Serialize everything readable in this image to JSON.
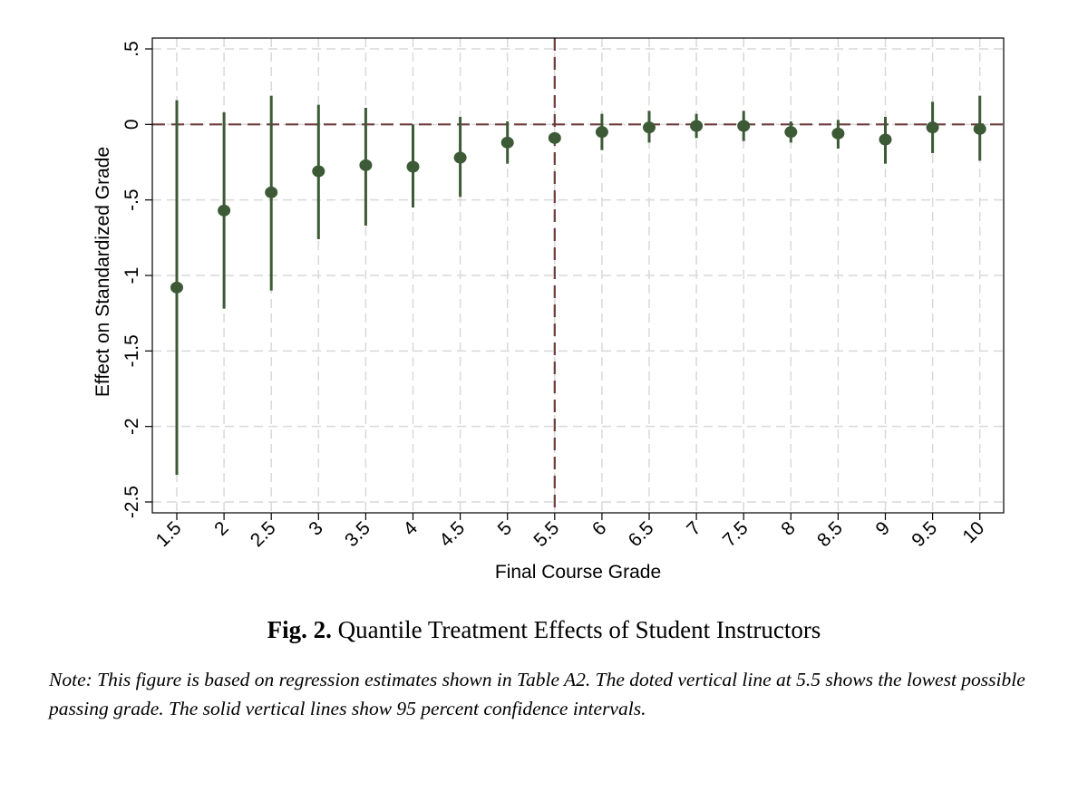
{
  "chart_data": {
    "type": "scatter",
    "subtype": "point-estimate-with-confidence-intervals",
    "xlabel": "Final Course Grade",
    "ylabel": "Effect on Standardized Grade",
    "ylim": [
      -2.5,
      0.5
    ],
    "y_ticks": [
      ".5",
      "0",
      "-.5",
      "-1",
      "-1.5",
      "-2",
      "-2.5"
    ],
    "y_tick_values": [
      0.5,
      0,
      -0.5,
      -1,
      -1.5,
      -2,
      -2.5
    ],
    "x_ticks": [
      "1.5",
      "2",
      "2.5",
      "3",
      "3.5",
      "4",
      "4.5",
      "5",
      "5.5",
      "6",
      "6.5",
      "7",
      "7.5",
      "8",
      "8.5",
      "9",
      "9.5",
      "10"
    ],
    "x": [
      1.5,
      2,
      2.5,
      3,
      3.5,
      4,
      4.5,
      5,
      5.5,
      6,
      6.5,
      7,
      7.5,
      8,
      8.5,
      9,
      9.5,
      10
    ],
    "estimates": [
      -1.08,
      -0.57,
      -0.45,
      -0.31,
      -0.27,
      -0.28,
      -0.22,
      -0.12,
      -0.09,
      -0.05,
      -0.02,
      -0.01,
      -0.01,
      -0.05,
      -0.06,
      -0.1,
      -0.02,
      -0.03
    ],
    "ci_lower": [
      -2.32,
      -1.22,
      -1.1,
      -0.76,
      -0.67,
      -0.55,
      -0.48,
      -0.26,
      -0.09,
      -0.17,
      -0.12,
      -0.09,
      -0.11,
      -0.12,
      -0.16,
      -0.26,
      -0.19,
      -0.24
    ],
    "ci_upper": [
      0.16,
      0.08,
      0.19,
      0.13,
      0.11,
      0.0,
      0.05,
      0.02,
      -0.09,
      0.07,
      0.09,
      0.07,
      0.09,
      0.02,
      0.03,
      0.05,
      0.15,
      0.19
    ],
    "reference_lines": [
      {
        "orientation": "horizontal",
        "value": 0,
        "style": "dashed"
      },
      {
        "orientation": "vertical",
        "value": 5.5,
        "style": "dashed"
      }
    ],
    "grid": true,
    "colors": {
      "points": "#3b5a35",
      "reference": "#6e3b3b",
      "grid": "#d9d9d9"
    }
  },
  "caption": {
    "label": "Fig. 2.",
    "text": "Quantile Treatment Effects of Student Instructors"
  },
  "note": "Note: This figure is based on regression estimates shown in Table A2. The doted vertical line at 5.5 shows the lowest possible passing grade. The solid vertical lines show 95 percent confidence intervals."
}
